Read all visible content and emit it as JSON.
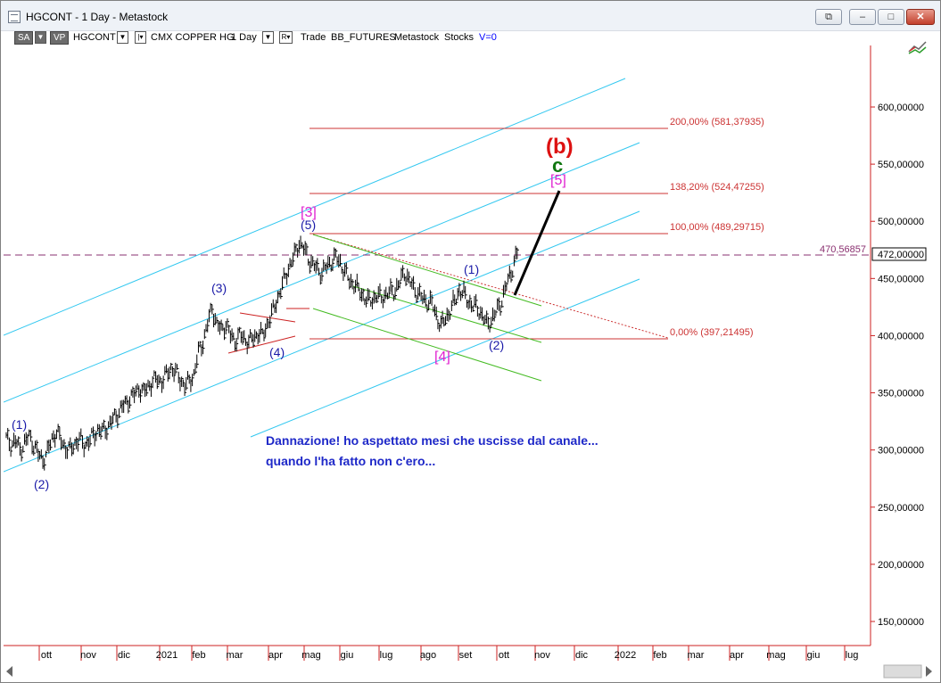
{
  "window": {
    "title": "HGCONT - 1 Day - Metastock",
    "buttons": {
      "restore_doc": "⧉",
      "minimize": "–",
      "maximize": "□",
      "close": "✕"
    }
  },
  "toolbar": {
    "sa": "SA",
    "vp": "VP",
    "symbol": "HGCONT",
    "name": "CMX COPPER HG",
    "period": "1 Day",
    "trade": "Trade",
    "feed": "BB_FUTURES",
    "source": "Metastock",
    "stocks": "Stocks",
    "volume": "V=0"
  },
  "colors": {
    "channel": "#33c8f0",
    "fib": "#cc3333",
    "wave_blue": "#1a1aa8",
    "wave_magenta": "#e020d0",
    "wave_red": "#dd1111",
    "wave_green": "#117711",
    "green_channel": "#44bb22",
    "annotation": "#1e28c8",
    "axis": "#cc2222"
  },
  "chart_data": {
    "type": "bar",
    "yaxis": {
      "ylim": [
        125,
        670
      ],
      "ticks": [
        "600,00000",
        "550,00000",
        "500,00000",
        "450,00000",
        "400,00000",
        "350,00000",
        "300,00000",
        "250,00000",
        "200,00000",
        "150,00000"
      ],
      "tick_values": [
        600,
        550,
        500,
        450,
        400,
        350,
        300,
        250,
        200,
        150
      ],
      "current_price_label": "472,00000",
      "current_price": 472
    },
    "xaxis": {
      "month_labels": [
        "ott",
        "nov",
        "dic",
        "2021",
        "feb",
        "mar",
        "apr",
        "mag",
        "giu",
        "lug",
        "ago",
        "set",
        "ott",
        "nov",
        "dic",
        "2022",
        "feb",
        "mar",
        "apr",
        "mag",
        "giu",
        "lug"
      ]
    },
    "fib_levels": [
      {
        "label": "200,00% (581,37935)",
        "value": 581.37935
      },
      {
        "label": "138,20% (524,47255)",
        "value": 524.47255
      },
      {
        "label": "100,00% (489,29715)",
        "value": 489.29715
      },
      {
        "label": "0,00% (397,21495)",
        "value": 397.21495
      }
    ],
    "dashed_level": {
      "label": "470,56857",
      "value": 470.56857
    },
    "wave_labels": [
      {
        "text": "(1)",
        "color": "blue"
      },
      {
        "text": "(2)",
        "color": "blue"
      },
      {
        "text": "(3)",
        "color": "blue"
      },
      {
        "text": "(4)",
        "color": "blue"
      },
      {
        "text": "(5)",
        "color": "blue"
      },
      {
        "text": "[3]",
        "color": "magenta"
      },
      {
        "text": "[4]",
        "color": "magenta"
      },
      {
        "text": "(1)",
        "color": "blue"
      },
      {
        "text": "(2)",
        "color": "blue"
      },
      {
        "text": "[5]",
        "color": "magenta"
      },
      {
        "text": "c",
        "color": "green"
      },
      {
        "text": "(b)",
        "color": "red"
      }
    ],
    "price_path": [
      [
        0,
        310
      ],
      [
        3,
        305
      ],
      [
        6,
        308
      ],
      [
        9,
        300
      ],
      [
        12,
        306
      ],
      [
        15,
        312
      ],
      [
        18,
        305
      ],
      [
        21,
        296
      ],
      [
        24,
        292
      ],
      [
        27,
        298
      ],
      [
        30,
        310
      ],
      [
        33,
        316
      ],
      [
        36,
        308
      ],
      [
        39,
        302
      ],
      [
        42,
        300
      ],
      [
        45,
        306
      ],
      [
        48,
        310
      ],
      [
        51,
        304
      ],
      [
        54,
        308
      ],
      [
        57,
        312
      ],
      [
        60,
        318
      ],
      [
        63,
        316
      ],
      [
        66,
        320
      ],
      [
        69,
        325
      ],
      [
        72,
        330
      ],
      [
        75,
        336
      ],
      [
        78,
        340
      ],
      [
        81,
        346
      ],
      [
        84,
        348
      ],
      [
        87,
        355
      ],
      [
        90,
        350
      ],
      [
        93,
        356
      ],
      [
        96,
        360
      ],
      [
        99,
        362
      ],
      [
        102,
        360
      ],
      [
        105,
        366
      ],
      [
        108,
        372
      ],
      [
        111,
        368
      ],
      [
        114,
        362
      ],
      [
        117,
        356
      ],
      [
        120,
        360
      ],
      [
        123,
        366
      ],
      [
        126,
        385
      ],
      [
        129,
        395
      ],
      [
        132,
        410
      ],
      [
        135,
        425
      ],
      [
        138,
        410
      ],
      [
        141,
        405
      ],
      [
        144,
        410
      ],
      [
        147,
        400
      ],
      [
        150,
        396
      ],
      [
        153,
        400
      ],
      [
        156,
        398
      ],
      [
        159,
        394
      ],
      [
        162,
        398
      ],
      [
        165,
        402
      ],
      [
        168,
        400
      ],
      [
        171,
        410
      ],
      [
        174,
        418
      ],
      [
        177,
        430
      ],
      [
        180,
        440
      ],
      [
        183,
        452
      ],
      [
        186,
        462
      ],
      [
        189,
        470
      ],
      [
        192,
        482
      ],
      [
        195,
        476
      ],
      [
        198,
        468
      ],
      [
        201,
        462
      ],
      [
        204,
        458
      ],
      [
        207,
        455
      ],
      [
        210,
        460
      ],
      [
        213,
        465
      ],
      [
        216,
        468
      ],
      [
        219,
        464
      ],
      [
        222,
        455
      ],
      [
        225,
        448
      ],
      [
        228,
        445
      ],
      [
        231,
        440
      ],
      [
        234,
        435
      ],
      [
        237,
        430
      ],
      [
        240,
        432
      ],
      [
        243,
        435
      ],
      [
        246,
        433
      ],
      [
        249,
        436
      ],
      [
        252,
        438
      ],
      [
        255,
        440
      ],
      [
        258,
        446
      ],
      [
        261,
        456
      ],
      [
        264,
        448
      ],
      [
        267,
        442
      ],
      [
        270,
        437
      ],
      [
        273,
        432
      ],
      [
        276,
        430
      ],
      [
        279,
        428
      ],
      [
        282,
        418
      ],
      [
        285,
        408
      ],
      [
        288,
        415
      ],
      [
        291,
        422
      ],
      [
        294,
        430
      ],
      [
        297,
        440
      ],
      [
        300,
        436
      ],
      [
        303,
        430
      ],
      [
        306,
        426
      ],
      [
        309,
        424
      ],
      [
        312,
        418
      ],
      [
        315,
        410
      ],
      [
        318,
        414
      ],
      [
        321,
        420
      ],
      [
        324,
        428
      ],
      [
        327,
        440
      ],
      [
        330,
        452
      ],
      [
        333,
        464
      ],
      [
        336,
        476
      ]
    ],
    "annotations": [
      "Dannazione! ho aspettato mesi che uscisse dal canale...",
      "quando l'ha fatto non c'ero..."
    ]
  }
}
